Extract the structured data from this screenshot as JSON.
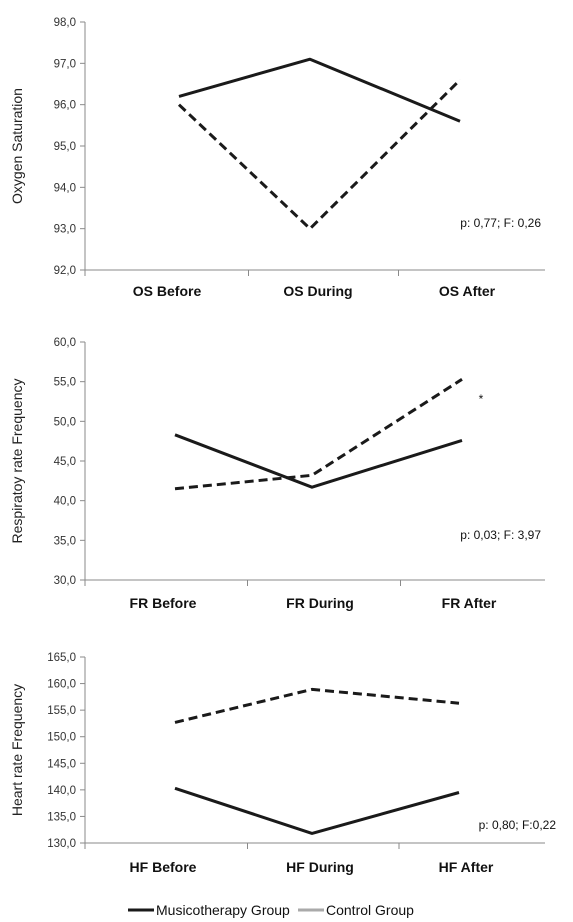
{
  "chart_data": [
    {
      "type": "line",
      "ylabel": "Oxygen Saturation",
      "xlabel": "",
      "categories": [
        "OS Before",
        "OS During",
        "OS After"
      ],
      "ylim": [
        92.0,
        98.0
      ],
      "yticks": [
        "92,0",
        "93,0",
        "94,0",
        "95,0",
        "96,0",
        "97,0",
        "98,0"
      ],
      "yticks_values": [
        92,
        93,
        94,
        95,
        96,
        97,
        98
      ],
      "series": [
        {
          "values": [
            96.2,
            97.1,
            95.6
          ],
          "style": "solid"
        },
        {
          "values": [
            96.0,
            93.0,
            96.6
          ],
          "style": "dashed"
        }
      ],
      "annotation": "p: 0,77; F: 0,26",
      "marker": ""
    },
    {
      "type": "line",
      "ylabel": "Respiratoy rate Frequency",
      "xlabel": "",
      "categories": [
        "FR Before",
        "FR During",
        "FR After"
      ],
      "ylim": [
        30.0,
        60.0
      ],
      "yticks": [
        "30,0",
        "35,0",
        "40,0",
        "45,0",
        "50,0",
        "55,0",
        "60,0"
      ],
      "yticks_values": [
        30,
        35,
        40,
        45,
        50,
        55,
        60
      ],
      "series": [
        {
          "values": [
            48.3,
            41.7,
            47.6
          ],
          "style": "solid"
        },
        {
          "values": [
            41.5,
            43.2,
            55.3
          ],
          "style": "dashed"
        }
      ],
      "annotation": "p: 0,03; F: 3,97",
      "marker": "*"
    },
    {
      "type": "line",
      "ylabel": "Heart rate Frequency",
      "xlabel": "",
      "categories": [
        "HF Before",
        "HF During",
        "HF After"
      ],
      "ylim": [
        130.0,
        165.0
      ],
      "yticks": [
        "130,0",
        "135,0",
        "140,0",
        "145,0",
        "150,0",
        "155,0",
        "160,0",
        "165,0"
      ],
      "yticks_values": [
        130,
        135,
        140,
        145,
        150,
        155,
        160,
        165
      ],
      "series": [
        {
          "values": [
            140.3,
            131.8,
            139.5
          ],
          "style": "solid"
        },
        {
          "values": [
            152.7,
            158.9,
            156.3
          ],
          "style": "dashed"
        }
      ],
      "annotation": "p: 0,80; F:0,22",
      "marker": ""
    }
  ],
  "legend": {
    "items": [
      {
        "label": "Musicotherapy Group",
        "color": "#1a1a1a"
      },
      {
        "label": "Control Group",
        "color": "#aaaaaa"
      }
    ]
  }
}
